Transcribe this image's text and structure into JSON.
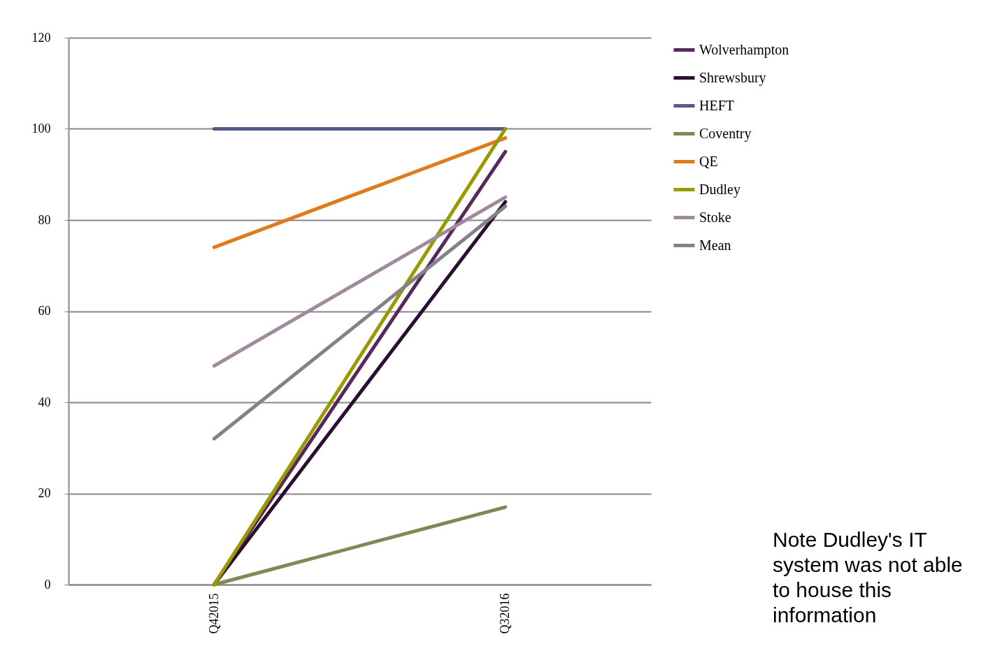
{
  "chart_data": {
    "type": "line",
    "categories": [
      "Q42015",
      "Q32016"
    ],
    "ylim": [
      0,
      120
    ],
    "yticks": [
      0,
      20,
      40,
      60,
      80,
      100,
      120
    ],
    "grid": "y",
    "legend": "right",
    "line_style": "solid",
    "series": [
      {
        "name": "Wolverhampton",
        "color": "#57285a",
        "values": [
          0,
          95
        ]
      },
      {
        "name": "Shrewsbury",
        "color": "#2a0f33",
        "values": [
          0,
          84
        ]
      },
      {
        "name": "HEFT",
        "color": "#555c8a",
        "values": [
          100,
          100
        ]
      },
      {
        "name": "Coventry",
        "color": "#858556",
        "values": [
          0,
          17
        ]
      },
      {
        "name": "QE",
        "color": "#e07b1c",
        "values": [
          74,
          98
        ]
      },
      {
        "name": "Dudley",
        "color": "#999900",
        "values": [
          0,
          100
        ]
      },
      {
        "name": "Stoke",
        "color": "#a08a9e",
        "values": [
          48,
          85
        ]
      },
      {
        "name": "Mean",
        "color": "#828289",
        "values": [
          32,
          83
        ]
      }
    ],
    "annotations": [
      "Note Dudley's IT system was not able to house this information"
    ]
  }
}
